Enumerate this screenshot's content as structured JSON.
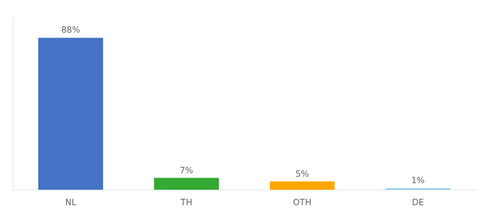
{
  "chart_data": {
    "type": "bar",
    "categories": [
      "NL",
      "TH",
      "OTH",
      "DE"
    ],
    "values": [
      88,
      7,
      5,
      1
    ],
    "value_labels": [
      "88%",
      "7%",
      "5%",
      "1%"
    ],
    "colors": [
      "#4472C4",
      "#33AA33",
      "#FFA500",
      "#87CEEB"
    ],
    "ylim": [
      0,
      100
    ],
    "data_labels": true,
    "tick_labels": "x",
    "grid": false
  }
}
